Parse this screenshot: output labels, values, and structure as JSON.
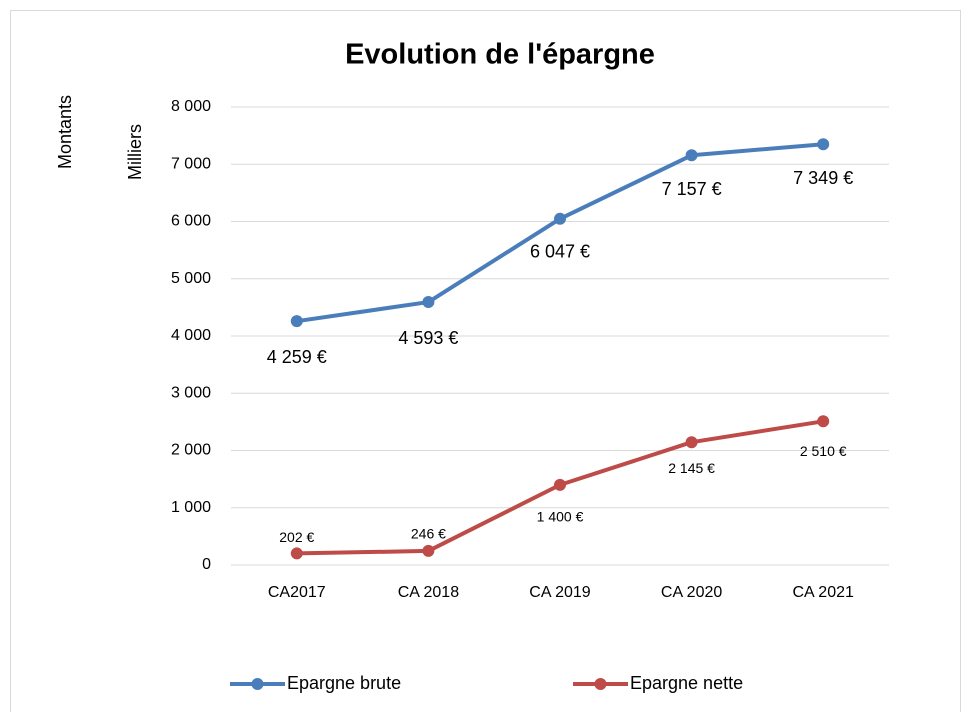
{
  "chart_data": {
    "type": "line",
    "title": "Evolution de l'épargne",
    "y_label": "Montants",
    "y_unit_label": "Milliers",
    "categories": [
      "CA2017",
      "CA 2018",
      "CA 2019",
      "CA 2020",
      "CA 2021"
    ],
    "series": [
      {
        "name": "Epargne brute",
        "color": "#4a7ebb",
        "values": [
          4259,
          4593,
          6047,
          7157,
          7349
        ],
        "value_labels": [
          "4 259 €",
          "4 593 €",
          "6 047 €",
          "7 157 €",
          "7 349 €"
        ]
      },
      {
        "name": "Epargne nette",
        "color": "#be4b48",
        "values": [
          202,
          246,
          1400,
          2145,
          2510
        ],
        "value_labels": [
          "202 €",
          "246 €",
          "1 400 €",
          "2 145 €",
          "2 510 €"
        ]
      }
    ],
    "ylim": [
      0,
      8000
    ],
    "yticks": [
      0,
      {
        "value": 1000,
        "label": "1 000"
      },
      {
        "value": 2000,
        "label": "2 000"
      },
      {
        "value": 3000,
        "label": "3 000"
      },
      {
        "value": 4000,
        "label": "4 000"
      },
      {
        "value": 5000,
        "label": "5 000"
      },
      {
        "value": 6000,
        "label": "6 000"
      },
      {
        "value": 7000,
        "label": "7 000"
      },
      {
        "value": 8000,
        "label": "8 000"
      }
    ],
    "grid": true,
    "legend": "bottom"
  }
}
